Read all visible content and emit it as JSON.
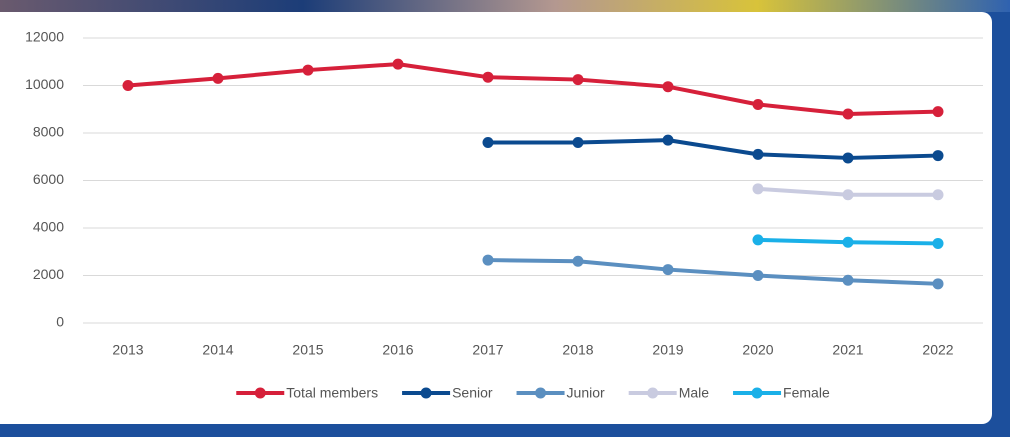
{
  "chart_data": {
    "type": "line",
    "categories": [
      "2013",
      "2014",
      "2015",
      "2016",
      "2017",
      "2018",
      "2019",
      "2020",
      "2021",
      "2022"
    ],
    "series": [
      {
        "name": "Total members",
        "color": "#d6203a",
        "values": [
          10000,
          10300,
          10650,
          10900,
          10350,
          10250,
          9950,
          9200,
          8800,
          8900
        ]
      },
      {
        "name": "Senior",
        "color": "#0b4a8f",
        "values": [
          null,
          null,
          null,
          null,
          7600,
          7600,
          7700,
          7100,
          6950,
          7050
        ]
      },
      {
        "name": "Junior",
        "color": "#5b8fc0",
        "values": [
          null,
          null,
          null,
          null,
          2650,
          2600,
          2250,
          2000,
          1800,
          1650
        ]
      },
      {
        "name": "Male",
        "color": "#c9cbe0",
        "values": [
          null,
          null,
          null,
          null,
          null,
          null,
          null,
          5650,
          5400,
          5400
        ]
      },
      {
        "name": "Female",
        "color": "#1ab0e8",
        "values": [
          null,
          null,
          null,
          null,
          null,
          null,
          null,
          3500,
          3400,
          3350
        ]
      }
    ],
    "ylim": [
      0,
      12000
    ],
    "yticks": [
      0,
      2000,
      4000,
      6000,
      8000,
      10000,
      12000
    ],
    "grid": true,
    "legend": "bottom"
  }
}
